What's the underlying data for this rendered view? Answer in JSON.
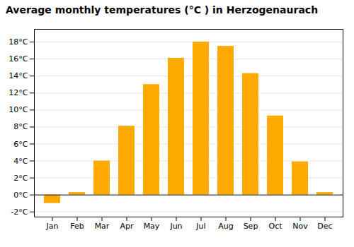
{
  "chart_data": {
    "type": "bar",
    "title": "Average monthly temperatures (°C ) in Herzogenaurach",
    "categories": [
      "Jan",
      "Feb",
      "Mar",
      "Apr",
      "May",
      "Jun",
      "Jul",
      "Aug",
      "Sep",
      "Oct",
      "Nov",
      "Dec"
    ],
    "values": [
      -1.0,
      0.3,
      4.0,
      8.1,
      13.0,
      16.1,
      18.0,
      17.5,
      14.3,
      9.3,
      3.9,
      0.3
    ],
    "color": "#FFAA00",
    "ylim": [
      -2.6,
      19.5
    ],
    "yticks": [
      {
        "value": -2,
        "label": "-2°C"
      },
      {
        "value": 0,
        "label": "0°C"
      },
      {
        "value": 2,
        "label": "2°C"
      },
      {
        "value": 4,
        "label": "4°C"
      },
      {
        "value": 6,
        "label": "6°C"
      },
      {
        "value": 8,
        "label": "8°C"
      },
      {
        "value": 10,
        "label": "10°C"
      },
      {
        "value": 12,
        "label": "12°C"
      },
      {
        "value": 14,
        "label": "14°C"
      },
      {
        "value": 16,
        "label": "16°C"
      },
      {
        "value": 18,
        "label": "18°C"
      }
    ],
    "grid": true
  }
}
